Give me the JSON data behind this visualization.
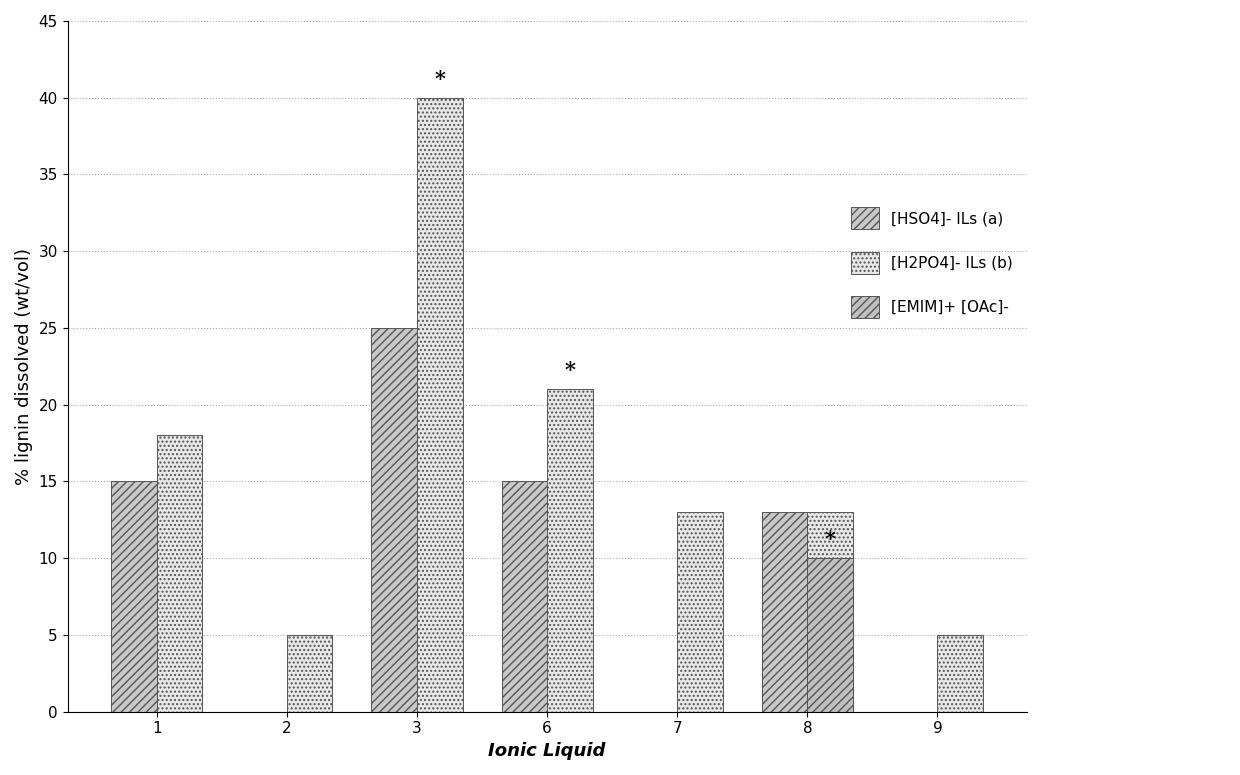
{
  "categories": [
    "1",
    "2",
    "3",
    "6",
    "7",
    "8",
    "9"
  ],
  "series": {
    "HSO4": [
      15,
      0,
      25,
      15,
      0,
      13,
      0
    ],
    "H2PO4": [
      18,
      5,
      40,
      21,
      13,
      13,
      5
    ],
    "EMIM": [
      0,
      0,
      0,
      0,
      0,
      10,
      0
    ]
  },
  "bar_width": 0.35,
  "ylim": [
    0,
    45
  ],
  "yticks": [
    0,
    5,
    10,
    15,
    20,
    25,
    30,
    35,
    40,
    45
  ],
  "ylabel": "% lignin dissolved (wt/vol)",
  "xlabel": "Ionic Liquid",
  "legend_labels": [
    "[HSO4]- ILs (a)",
    "[H2PO4]- ILs (b)",
    "[EMIM]+ [OAc]-"
  ],
  "asterisk_positions": [
    {
      "cat": "3",
      "series": "H2PO4",
      "label": "*"
    },
    {
      "cat": "6",
      "series": "H2PO4",
      "label": "*"
    },
    {
      "cat": "8",
      "series": "EMIM",
      "label": "*"
    }
  ],
  "hatch_HSO4": "////",
  "hatch_H2PO4": "....",
  "hatch_EMIM": "////",
  "color_HSO4": "#c8c8c8",
  "color_H2PO4": "#e8e8e8",
  "color_EMIM": "#c0c0c0",
  "edgecolor": "#555555",
  "axis_fontsize": 13,
  "tick_fontsize": 11,
  "legend_fontsize": 11,
  "figsize": [
    12.4,
    7.75
  ],
  "dpi": 100
}
